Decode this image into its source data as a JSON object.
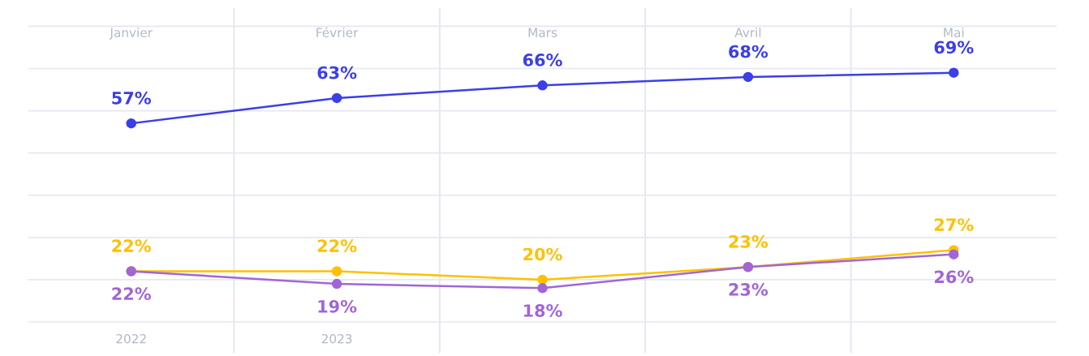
{
  "chart_data": {
    "type": "line",
    "categories": [
      "Janvier",
      "Février",
      "Mars",
      "Avril",
      "Mai"
    ],
    "series": [
      {
        "color": "#3b3fe8",
        "values": [
          57,
          63,
          66,
          68,
          69
        ],
        "value_labels": [
          "57%",
          "63%",
          "66%",
          "68%",
          "69%"
        ]
      },
      {
        "color": "#ffc000",
        "values": [
          22,
          22,
          20,
          23,
          27
        ],
        "value_labels": [
          "22%",
          "22%",
          "20%",
          "23%",
          "27%"
        ]
      },
      {
        "color": "#a066d8",
        "values": [
          22,
          19,
          18,
          23,
          26
        ],
        "value_labels": [
          "22%",
          "19%",
          "18%",
          "23%",
          "26%"
        ]
      }
    ],
    "tick_labels": "x",
    "grid": true,
    "marker": "circle",
    "line_style": "solid",
    "legend": false,
    "annotations": [
      "2022",
      "2023"
    ]
  }
}
